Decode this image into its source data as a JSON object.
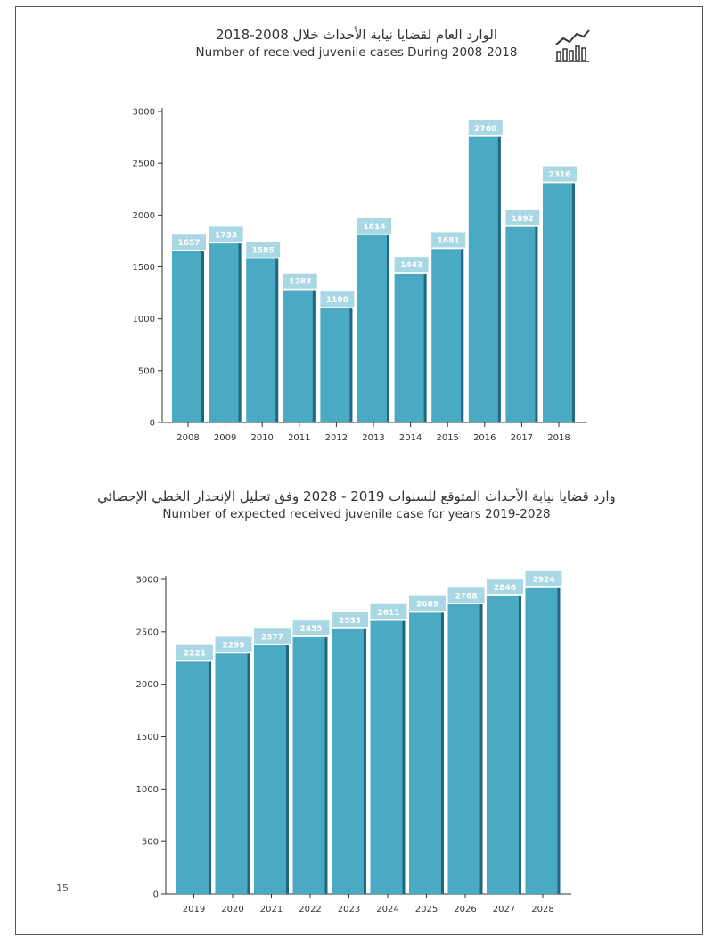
{
  "page": {
    "number": "15"
  },
  "colors": {
    "bar_face": "#4aaac4",
    "bar_side": "#21687f",
    "label_box": "#a9d7e4",
    "axis": "#333333"
  },
  "icons": {
    "header": "bar-chart-trend-icon"
  },
  "chart_data": [
    {
      "type": "bar",
      "title_ar": "الوارد العام لقضايا نيابة الأحداث خلال 2008-2018",
      "title": "Number of received juvenile cases During 2008-2018",
      "xlabel": "",
      "ylabel": "",
      "ylim": [
        0,
        3000
      ],
      "yticks": [
        0,
        500,
        1000,
        1500,
        2000,
        2500,
        3000
      ],
      "categories": [
        "2008",
        "2009",
        "2010",
        "2011",
        "2012",
        "2013",
        "2014",
        "2015",
        "2016",
        "2017",
        "2018"
      ],
      "values": [
        1657,
        1733,
        1585,
        1283,
        1108,
        1814,
        1443,
        1681,
        2760,
        1892,
        2316
      ],
      "grid": false,
      "legend": "none"
    },
    {
      "type": "bar",
      "title_ar": "وارد قضايا نيابة الأحداث المتوقع للسنوات 2019 - 2028 وفق تحليل الإنحدار الخطي الإحصائي",
      "title": "Number of expected received juvenile case for years 2019-2028",
      "xlabel": "",
      "ylabel": "",
      "ylim": [
        0,
        3000
      ],
      "yticks": [
        0,
        500,
        1000,
        1500,
        2000,
        2500,
        3000
      ],
      "categories": [
        "2019",
        "2020",
        "2021",
        "2022",
        "2023",
        "2024",
        "2025",
        "2026",
        "2027",
        "2028"
      ],
      "values": [
        2221,
        2299,
        2377,
        2455,
        2533,
        2611,
        2689,
        2768,
        2846,
        2924
      ],
      "grid": false,
      "legend": "none"
    }
  ]
}
